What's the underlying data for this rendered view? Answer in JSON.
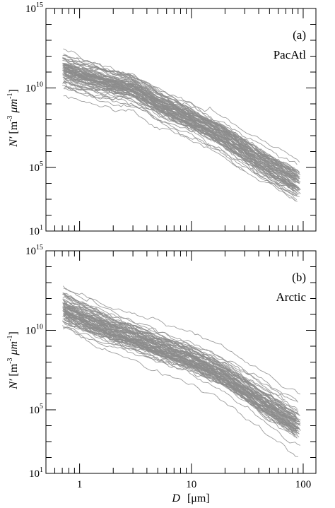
{
  "figure": {
    "xlabel_var": "D",
    "xlabel_unit": "[μm]",
    "ylabel_var": "N′",
    "ylabel_unit_open": "[m",
    "ylabel_unit_exp1": "-3",
    "ylabel_unit_mid": " μm",
    "ylabel_unit_exp2": "-1",
    "ylabel_unit_close": "]",
    "curve_color": "#8c8c8c",
    "axis_color": "#000000"
  },
  "chart_data": [
    {
      "type": "line",
      "panel_label": "(a)",
      "region_label": "PacAtl",
      "xscale": "log",
      "yscale": "log",
      "xlim": [
        0.5,
        130
      ],
      "ylim": [
        10,
        1000000000000000.0
      ],
      "xticks": [
        {
          "value": 1,
          "base": "1",
          "exp": ""
        },
        {
          "value": 10,
          "base": "10",
          "exp": ""
        },
        {
          "value": 100,
          "base": "100",
          "exp": ""
        }
      ],
      "yticks": [
        {
          "value": 10,
          "base": "10",
          "exp": "1"
        },
        {
          "value": 100000,
          "base": "10",
          "exp": "5"
        },
        {
          "value": 10000000000.0,
          "base": "10",
          "exp": "10"
        },
        {
          "value": 1000000000000000.0,
          "base": "10",
          "exp": "15"
        }
      ],
      "ensemble": {
        "x_range": [
          0.7,
          95
        ],
        "median_log10_y": [
          [
            0.7,
            11.1
          ],
          [
            1.0,
            10.75
          ],
          [
            2.0,
            10.2
          ],
          [
            3.0,
            9.95
          ],
          [
            5.0,
            9.0
          ],
          [
            10.0,
            8.0
          ],
          [
            20.0,
            6.9
          ],
          [
            40.0,
            5.45
          ],
          [
            95.0,
            3.9
          ]
        ],
        "log10_spread": 0.85,
        "curve_count": 80
      },
      "envelope_log10_y": {
        "x": [
          0.7,
          1,
          2,
          3,
          5,
          10,
          20,
          40,
          95
        ],
        "upper": [
          11.9,
          11.6,
          11.0,
          10.9,
          9.9,
          8.9,
          7.8,
          6.2,
          4.6
        ],
        "lower": [
          10.4,
          10.0,
          9.4,
          9.0,
          8.1,
          7.1,
          6.1,
          4.7,
          3.2
        ]
      }
    },
    {
      "type": "line",
      "panel_label": "(b)",
      "region_label": "Arctic",
      "xscale": "log",
      "yscale": "log",
      "xlim": [
        0.5,
        130
      ],
      "ylim": [
        10,
        1000000000000000.0
      ],
      "xticks": [
        {
          "value": 1,
          "base": "1",
          "exp": ""
        },
        {
          "value": 10,
          "base": "10",
          "exp": ""
        },
        {
          "value": 100,
          "base": "100",
          "exp": ""
        }
      ],
      "yticks": [
        {
          "value": 10,
          "base": "10",
          "exp": "1"
        },
        {
          "value": 100000,
          "base": "10",
          "exp": "5"
        },
        {
          "value": 10000000000.0,
          "base": "10",
          "exp": "10"
        },
        {
          "value": 1000000000000000.0,
          "base": "10",
          "exp": "15"
        }
      ],
      "ensemble": {
        "x_range": [
          0.7,
          95
        ],
        "median_log10_y": [
          [
            0.7,
            11.4
          ],
          [
            1.0,
            10.9
          ],
          [
            2.0,
            10.0
          ],
          [
            3.0,
            9.6
          ],
          [
            5.0,
            9.0
          ],
          [
            10.0,
            8.2
          ],
          [
            20.0,
            7.2
          ],
          [
            40.0,
            5.7
          ],
          [
            95.0,
            4.0
          ]
        ],
        "log10_spread": 1.0,
        "curve_count": 80
      },
      "envelope_log10_y": {
        "x": [
          0.7,
          1,
          2,
          3,
          5,
          10,
          20,
          40,
          95
        ],
        "upper": [
          12.8,
          12.0,
          11.1,
          10.6,
          10.0,
          9.3,
          8.5,
          7.0,
          5.0
        ],
        "lower": [
          10.6,
          9.8,
          9.0,
          8.6,
          8.0,
          7.2,
          6.0,
          4.6,
          2.6
        ]
      }
    }
  ]
}
